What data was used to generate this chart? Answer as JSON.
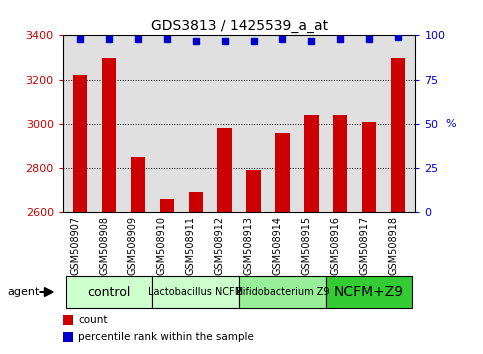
{
  "title": "GDS3813 / 1425539_a_at",
  "categories": [
    "GSM508907",
    "GSM508908",
    "GSM508909",
    "GSM508910",
    "GSM508911",
    "GSM508912",
    "GSM508913",
    "GSM508914",
    "GSM508915",
    "GSM508916",
    "GSM508917",
    "GSM508918"
  ],
  "bar_values": [
    3220,
    3300,
    2850,
    2660,
    2690,
    2980,
    2790,
    2960,
    3040,
    3040,
    3010,
    3300
  ],
  "percentile_values": [
    98,
    98,
    98,
    98,
    97,
    97,
    97,
    98,
    97,
    98,
    98,
    99
  ],
  "bar_color": "#cc0000",
  "percentile_color": "#0000cc",
  "ylim_left": [
    2600,
    3400
  ],
  "ylim_right": [
    0,
    100
  ],
  "yticks_left": [
    2600,
    2800,
    3000,
    3200,
    3400
  ],
  "yticks_right": [
    0,
    25,
    50,
    75,
    100
  ],
  "groups": [
    {
      "label": "control",
      "start": 0,
      "end": 3,
      "color": "#ccffcc",
      "fontsize": 9
    },
    {
      "label": "Lactobacillus NCFM",
      "start": 3,
      "end": 6,
      "color": "#ccffcc",
      "fontsize": 7
    },
    {
      "label": "Bifidobacterium Z9",
      "start": 6,
      "end": 9,
      "color": "#99ee99",
      "fontsize": 7
    },
    {
      "label": "NCFM+Z9",
      "start": 9,
      "end": 12,
      "color": "#33cc33",
      "fontsize": 10
    }
  ],
  "agent_label": "agent",
  "legend_count_label": "count",
  "legend_percentile_label": "percentile rank within the sample",
  "title_fontsize": 10,
  "tick_label_fontsize": 7,
  "axis_label_color_left": "#cc0000",
  "axis_label_color_right": "#0000cc",
  "background_color": "#ffffff",
  "plot_bg_color": "#e0e0e0"
}
